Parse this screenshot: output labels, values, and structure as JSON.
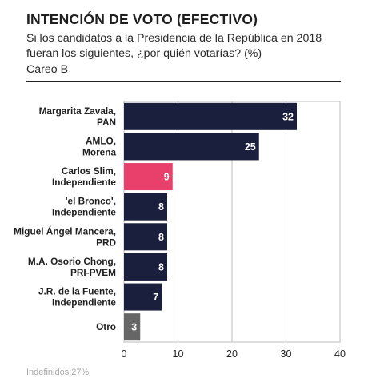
{
  "header": {
    "title": "INTENCIÓN DE VOTO (EFECTIVO)",
    "subtitle": "Si los candidatos a la Presidencia de la República en 2018 fueran los siguientes, ¿por quién votarías? (%)",
    "note": "Careo B"
  },
  "footer": {
    "footnote": "Indefinidos:27%"
  },
  "chart_data": {
    "type": "bar",
    "orientation": "horizontal",
    "categories": [
      [
        "Margarita Zavala,",
        "PAN"
      ],
      [
        "AMLO,",
        "Morena"
      ],
      [
        "Carlos Slim,",
        "Independiente"
      ],
      [
        "'el Bronco',",
        "Independiente"
      ],
      [
        "Miguel Ángel Mancera,",
        "PRD"
      ],
      [
        "M.A. Osorio Chong,",
        "PRI-PVEM"
      ],
      [
        "J.R. de la Fuente,",
        "Independiente"
      ],
      [
        "Otro"
      ]
    ],
    "values": [
      32,
      25,
      9,
      8,
      8,
      8,
      7,
      3
    ],
    "colors": [
      "#1a1f3d",
      "#1a1f3d",
      "#e8406a",
      "#1a1f3d",
      "#1a1f3d",
      "#1a1f3d",
      "#1a1f3d",
      "#666666"
    ],
    "xlim": [
      0,
      40
    ],
    "xticks": [
      0,
      10,
      20,
      30,
      40
    ],
    "grid": true,
    "title": "",
    "xlabel": "",
    "ylabel": ""
  }
}
